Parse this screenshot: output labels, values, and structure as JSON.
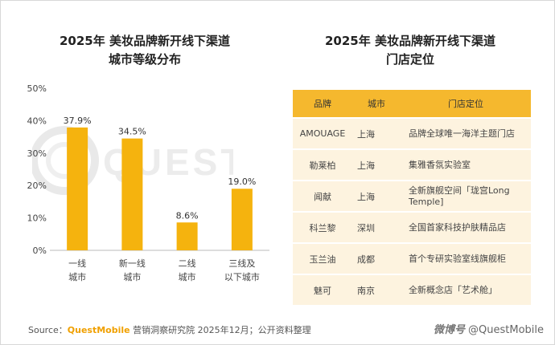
{
  "chart_title_line1": "2025年 美妆品牌新开线下渠道",
  "chart_title_line2": "城市等级分布",
  "table_title_line1": "2025年 美妆品牌新开线下渠道",
  "table_title_line2": "门店定位",
  "chart_data": {
    "type": "bar",
    "categories": [
      [
        "一线",
        "城市"
      ],
      [
        "新一线",
        "城市"
      ],
      [
        "二线",
        "城市"
      ],
      [
        "三线及",
        "以下城市"
      ]
    ],
    "values": [
      37.9,
      34.5,
      8.6,
      19.0
    ],
    "value_labels": [
      "37.9%",
      "34.5%",
      "8.6%",
      "19.0%"
    ],
    "yticks": [
      "0%",
      "10%",
      "20%",
      "30%",
      "40%",
      "50%"
    ],
    "ylim": [
      0,
      50
    ],
    "bar_color": "#f5b30e",
    "grid": false
  },
  "table": {
    "headers": [
      "品牌",
      "城市",
      "门店定位"
    ],
    "rows": [
      {
        "brand": "AMOUAGE",
        "city": "上海",
        "position": "品牌全球唯一海洋主题门店"
      },
      {
        "brand": "勒莱柏",
        "city": "上海",
        "position": "集雅香氛实验室"
      },
      {
        "brand": "闻献",
        "city": "上海",
        "position": "全新旗舰空间「珑宫Long Temple]"
      },
      {
        "brand": "科兰黎",
        "city": "深圳",
        "position": "全国首家科技护肤精品店"
      },
      {
        "brand": "玉兰油",
        "city": "成都",
        "position": "首个专研实验室线旗舰柜"
      },
      {
        "brand": "魅可",
        "city": "南京",
        "position": "全新概念店「艺术舱」"
      }
    ],
    "header_color": "#f5b82e",
    "row_color": "#fdf3df"
  },
  "source": {
    "prefix": "Source：",
    "brand": "QuestMobile",
    "text": " 营销洞察研究院 2025年12月；公开资料整理"
  },
  "logo": {
    "weibo": "微博号",
    "handle": "@QuestMobile"
  },
  "watermark_text": "QUEST"
}
